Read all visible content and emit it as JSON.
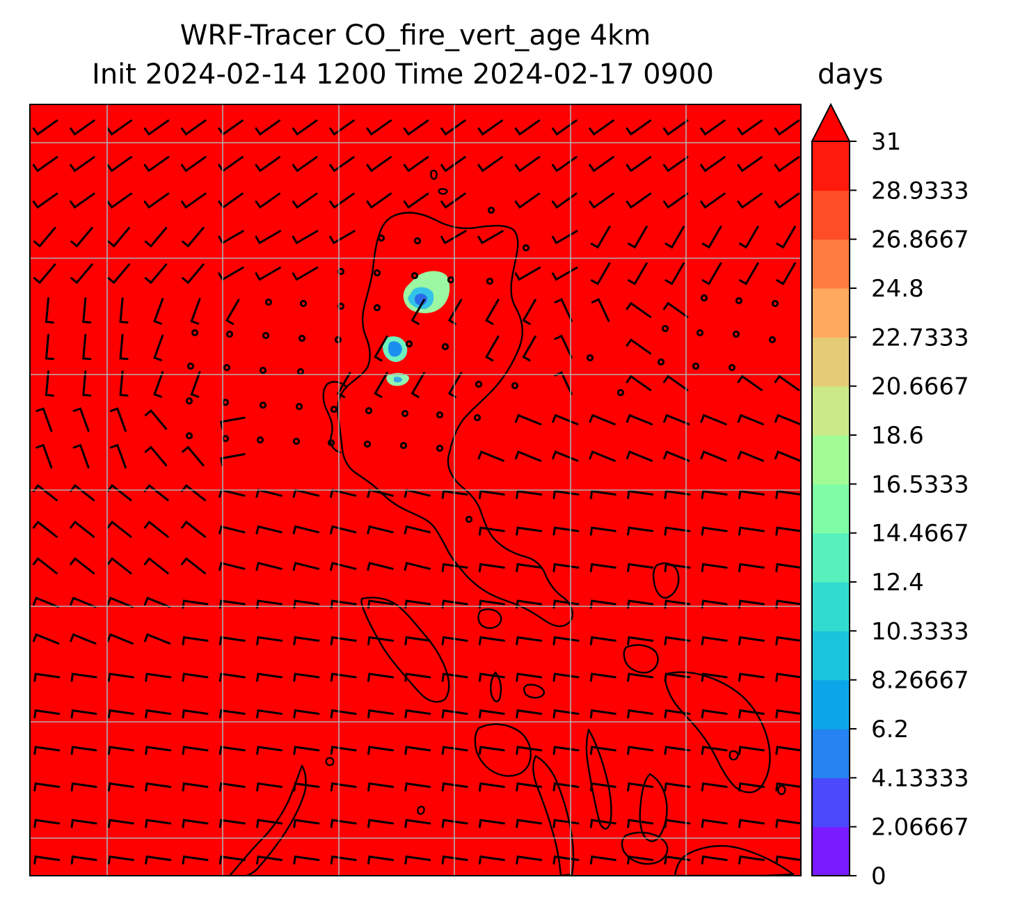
{
  "title": {
    "line1": "WRF-Tracer CO_fire_vert_age 4km",
    "line2": "Init 2024-02-14 1200 Time 2024-02-17 0900"
  },
  "colorbar": {
    "unit": "days",
    "extend": "max",
    "colors": [
      "#7a1bff",
      "#4a49fc",
      "#2683f1",
      "#0ba6ea",
      "#1ac4dd",
      "#31dccf",
      "#58f0bc",
      "#7ffda5",
      "#a3fb95",
      "#c9ea87",
      "#e6cb76",
      "#ffaa5f",
      "#ff7d41",
      "#ff4d26",
      "#ff1a0d"
    ],
    "overflow_color": "#ff0000",
    "ticks": [
      "0",
      "2.06667",
      "4.13333",
      "6.2",
      "8.26667",
      "10.3333",
      "12.4",
      "14.4667",
      "16.5333",
      "18.6",
      "20.6667",
      "22.7333",
      "24.8",
      "26.8667",
      "28.9333",
      "31"
    ]
  },
  "map": {
    "field_color": "#ff0000",
    "gridlines": "on",
    "gridline_color": "#b0b0b0",
    "features": [
      "wind-barbs",
      "coastlines",
      "low-age-tracer-patches"
    ]
  }
}
